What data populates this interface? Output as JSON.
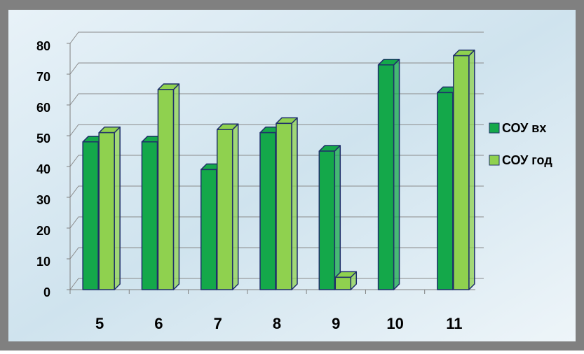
{
  "chart_data": {
    "type": "bar3d",
    "categories": [
      "5",
      "6",
      "7",
      "8",
      "9",
      "10",
      "11"
    ],
    "series": [
      {
        "name": "СОУ вх",
        "color": "#14a84a",
        "values": [
          48,
          48,
          39,
          51,
          45,
          73,
          64
        ]
      },
      {
        "name": "СОУ год",
        "color": "#8fd14f",
        "values": [
          51,
          65,
          52,
          54,
          4,
          null,
          76
        ]
      }
    ],
    "ylim": [
      0,
      80
    ],
    "yticks": [
      0,
      10,
      20,
      30,
      40,
      50,
      60,
      70,
      80
    ],
    "grid": true,
    "legend": "right"
  }
}
